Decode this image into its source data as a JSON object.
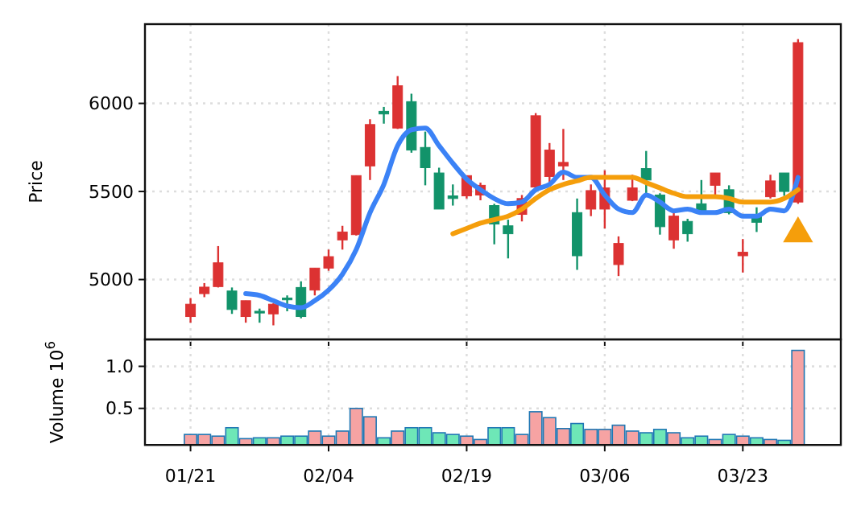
{
  "chart_data": [
    {
      "type": "candlestick",
      "ylabel": "Price",
      "categories": [
        null,
        null,
        null,
        null,
        null,
        null,
        null,
        null,
        null,
        null,
        null,
        null,
        null,
        null,
        null,
        null,
        null,
        null,
        null,
        null,
        null,
        null,
        null,
        null,
        null,
        null,
        null,
        null,
        null,
        null,
        null,
        null,
        null,
        null,
        null,
        null,
        null,
        null,
        null,
        null,
        null,
        null,
        null,
        null,
        null
      ],
      "ylim": [
        4660,
        6450
      ],
      "yticks": [
        5000,
        5500,
        6000
      ],
      "grid": true,
      "tick_labels": "y",
      "series": [
        {
          "ohlc": [
            [
              4790,
              4895,
              4755,
              4860
            ],
            [
              4920,
              4980,
              4900,
              4957
            ],
            [
              4960,
              5190,
              4955,
              5095
            ],
            [
              4935,
              4955,
              4805,
              4830
            ],
            [
              4790,
              4880,
              4755,
              4880
            ],
            [
              4820,
              4835,
              4755,
              4810
            ],
            [
              4805,
              4865,
              4740,
              4860
            ],
            [
              4895,
              4910,
              4820,
              4885
            ],
            [
              4955,
              4990,
              4780,
              4790
            ],
            [
              4940,
              5065,
              4910,
              5065
            ],
            [
              5065,
              5170,
              5050,
              5130
            ],
            [
              5225,
              5305,
              5170,
              5270
            ],
            [
              5255,
              5590,
              5250,
              5590
            ],
            [
              5645,
              5910,
              5565,
              5880
            ],
            [
              5955,
              5980,
              5885,
              5940
            ],
            [
              5860,
              6155,
              5855,
              6100
            ],
            [
              6010,
              6055,
              5720,
              5735
            ],
            [
              5750,
              5840,
              5535,
              5635
            ],
            [
              5605,
              5635,
              5400,
              5400
            ],
            [
              5475,
              5540,
              5420,
              5460
            ],
            [
              5475,
              5590,
              5460,
              5590
            ],
            [
              5480,
              5550,
              5450,
              5535
            ],
            [
              5420,
              5430,
              5200,
              5315
            ],
            [
              5305,
              5340,
              5120,
              5260
            ],
            [
              5370,
              5480,
              5330,
              5460
            ],
            [
              5525,
              5945,
              5520,
              5930
            ],
            [
              5585,
              5775,
              5535,
              5735
            ],
            [
              5645,
              5855,
              5565,
              5665
            ],
            [
              5380,
              5460,
              5055,
              5135
            ],
            [
              5400,
              5540,
              5360,
              5505
            ],
            [
              5400,
              5620,
              5290,
              5520
            ],
            [
              5085,
              5245,
              5020,
              5205
            ],
            [
              5450,
              5595,
              5445,
              5520
            ],
            [
              5630,
              5730,
              5475,
              5565
            ],
            [
              5480,
              5490,
              5255,
              5300
            ],
            [
              5225,
              5385,
              5175,
              5360
            ],
            [
              5330,
              5345,
              5215,
              5260
            ],
            [
              5430,
              5565,
              5385,
              5385
            ],
            [
              5535,
              5605,
              5475,
              5605
            ],
            [
              5510,
              5535,
              5370,
              5380
            ],
            [
              5135,
              5230,
              5040,
              5155
            ],
            [
              5360,
              5410,
              5270,
              5325
            ],
            [
              5470,
              5595,
              5460,
              5560
            ],
            [
              5605,
              5605,
              5475,
              5500
            ],
            [
              5440,
              6365,
              5430,
              6345
            ]
          ],
          "colors": [
            "#dc3232",
            "#dc3232",
            "#dc3232",
            "#12936a",
            "#dc3232",
            "#12936a",
            "#dc3232",
            "#12936a",
            "#12936a",
            "#dc3232",
            "#dc3232",
            "#dc3232",
            "#dc3232",
            "#dc3232",
            "#12936a",
            "#dc3232",
            "#12936a",
            "#12936a",
            "#12936a",
            "#12936a",
            "#dc3232",
            "#dc3232",
            "#12936a",
            "#12936a",
            "#dc3232",
            "#dc3232",
            "#dc3232",
            "#dc3232",
            "#12936a",
            "#dc3232",
            "#dc3232",
            "#dc3232",
            "#dc3232",
            "#12936a",
            "#12936a",
            "#dc3232",
            "#12936a",
            "#12936a",
            "#dc3232",
            "#12936a",
            "#dc3232",
            "#12936a",
            "#dc3232",
            "#12936a",
            "#dc3232"
          ]
        },
        {
          "type": "line",
          "color": "#3b82f6",
          "values": [
            null,
            null,
            null,
            null,
            4920,
            4910,
            4880,
            4850,
            4840,
            4880,
            4940,
            5030,
            5170,
            5380,
            5540,
            5760,
            5850,
            5860,
            5760,
            5660,
            5570,
            5510,
            5460,
            5430,
            5440,
            5510,
            5540,
            5610,
            5580,
            5580,
            5480,
            5400,
            5380,
            5480,
            5440,
            5390,
            5400,
            5380,
            5380,
            5400,
            5360,
            5360,
            5400,
            5390,
            5580
          ]
        },
        {
          "type": "line",
          "color": "#f59e0b",
          "values": [
            null,
            null,
            null,
            null,
            null,
            null,
            null,
            null,
            null,
            null,
            null,
            null,
            null,
            null,
            null,
            null,
            null,
            null,
            null,
            5260,
            5290,
            5320,
            5340,
            5360,
            5400,
            5460,
            5510,
            5540,
            5560,
            5580,
            5580,
            5580,
            5580,
            5550,
            5520,
            5490,
            5470,
            5470,
            5470,
            5460,
            5440,
            5440,
            5440,
            5460,
            5510
          ]
        },
        {
          "type": "scatter",
          "marker": "triangle",
          "color": "#f59e0b",
          "values": [
            null,
            null,
            null,
            null,
            null,
            null,
            null,
            null,
            null,
            null,
            null,
            null,
            null,
            null,
            null,
            null,
            null,
            null,
            null,
            null,
            null,
            null,
            null,
            null,
            null,
            null,
            null,
            null,
            null,
            null,
            null,
            null,
            null,
            null,
            null,
            null,
            null,
            null,
            null,
            null,
            null,
            null,
            null,
            null,
            5260
          ]
        }
      ]
    },
    {
      "type": "bar",
      "ylabel": "Volume  10$^{6}$",
      "categories": [
        "01/21",
        null,
        null,
        null,
        null,
        null,
        null,
        null,
        null,
        null,
        "02/04",
        null,
        null,
        null,
        null,
        null,
        null,
        null,
        null,
        null,
        "02/19",
        null,
        null,
        null,
        null,
        null,
        null,
        null,
        null,
        null,
        "03/06",
        null,
        null,
        null,
        null,
        null,
        null,
        null,
        null,
        null,
        "03/23",
        null,
        null,
        null,
        null
      ],
      "ylim": [
        0.065,
        1.32
      ],
      "yticks": [
        0.5,
        {
          "value": 1,
          "label": "1.0"
        }
      ],
      "grid": true,
      "values": [
        0.19,
        0.19,
        0.17,
        0.27,
        0.14,
        0.15,
        0.15,
        0.17,
        0.17,
        0.23,
        0.17,
        0.23,
        0.5,
        0.4,
        0.15,
        0.23,
        0.27,
        0.27,
        0.21,
        0.19,
        0.17,
        0.13,
        0.27,
        0.27,
        0.19,
        0.46,
        0.39,
        0.26,
        0.32,
        0.25,
        0.25,
        0.3,
        0.23,
        0.21,
        0.25,
        0.21,
        0.15,
        0.17,
        0.13,
        0.19,
        0.17,
        0.15,
        0.13,
        0.12,
        1.19
      ],
      "colors": [
        "#f6a3a3",
        "#f6a3a3",
        "#f6a3a3",
        "#6ee7b7",
        "#f6a3a3",
        "#6ee7b7",
        "#f6a3a3",
        "#6ee7b7",
        "#6ee7b7",
        "#f6a3a3",
        "#f6a3a3",
        "#f6a3a3",
        "#f6a3a3",
        "#f6a3a3",
        "#6ee7b7",
        "#f6a3a3",
        "#6ee7b7",
        "#6ee7b7",
        "#6ee7b7",
        "#6ee7b7",
        "#f6a3a3",
        "#f6a3a3",
        "#6ee7b7",
        "#6ee7b7",
        "#f6a3a3",
        "#f6a3a3",
        "#f6a3a3",
        "#f6a3a3",
        "#6ee7b7",
        "#f6a3a3",
        "#f6a3a3",
        "#f6a3a3",
        "#f6a3a3",
        "#6ee7b7",
        "#6ee7b7",
        "#f6a3a3",
        "#6ee7b7",
        "#6ee7b7",
        "#f6a3a3",
        "#6ee7b7",
        "#f6a3a3",
        "#6ee7b7",
        "#f6a3a3",
        "#6ee7b7",
        "#f6a3a3"
      ]
    }
  ]
}
